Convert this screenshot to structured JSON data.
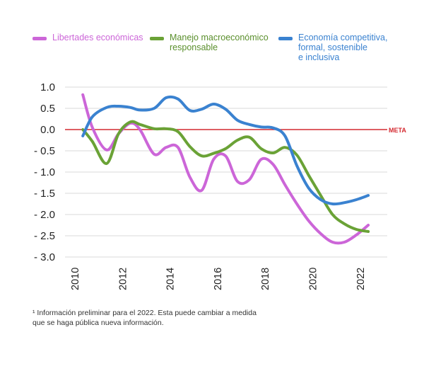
{
  "chart_data": {
    "type": "line",
    "x": [
      2010.3,
      2010.7,
      2011.3,
      2011.8,
      2012.3,
      2012.7,
      2013.3,
      2013.8,
      2014.3,
      2014.8,
      2015.3,
      2015.8,
      2016.3,
      2016.8,
      2017.3,
      2017.8,
      2018.3,
      2018.8,
      2019.3,
      2019.8,
      2020.3,
      2020.8,
      2021.3,
      2021.8,
      2022.3
    ],
    "series": [
      {
        "name": "Libertades económicas",
        "color": "#cc66d8",
        "values": [
          0.82,
          0.05,
          -0.48,
          -0.1,
          0.15,
          0.0,
          -0.58,
          -0.42,
          -0.42,
          -1.12,
          -1.43,
          -0.7,
          -0.62,
          -1.22,
          -1.18,
          -0.7,
          -0.82,
          -1.3,
          -1.75,
          -2.15,
          -2.45,
          -2.65,
          -2.65,
          -2.48,
          -2.25
        ]
      },
      {
        "name": "Manejo macroeconómico\nresponsable",
        "color": "#6aa236",
        "values": [
          0.0,
          -0.28,
          -0.8,
          -0.1,
          0.18,
          0.12,
          0.02,
          0.02,
          -0.05,
          -0.4,
          -0.62,
          -0.56,
          -0.45,
          -0.25,
          -0.18,
          -0.45,
          -0.55,
          -0.42,
          -0.6,
          -1.08,
          -1.55,
          -2.0,
          -2.22,
          -2.35,
          -2.4
        ]
      },
      {
        "name": "Economía competitiva,\nformal, sostenible\ne inclusiva",
        "color": "#3a82d0",
        "values": [
          -0.15,
          0.3,
          0.52,
          0.55,
          0.52,
          0.46,
          0.5,
          0.75,
          0.72,
          0.45,
          0.48,
          0.6,
          0.48,
          0.22,
          0.12,
          0.06,
          0.04,
          -0.15,
          -0.85,
          -1.38,
          -1.65,
          -1.75,
          -1.72,
          -1.65,
          -1.55
        ]
      }
    ],
    "y_ticks": [
      "1.0",
      "0.5",
      "0.0",
      "- 0.5",
      "- 1.0",
      "- 1.5",
      "- 2.0",
      "- 2.5",
      "- 3.0"
    ],
    "x_ticks": [
      "2010",
      "2012",
      "2014",
      "2016",
      "2018",
      "2020",
      "2022"
    ],
    "ylim": [
      -3.0,
      1.0
    ],
    "xlim": [
      2009.55,
      2023.1
    ],
    "grid": true,
    "legend_position": "top",
    "reference_line": {
      "value": 0.0,
      "label": "META",
      "color": "#d42a30"
    }
  },
  "footnote": "¹ Información preliminar para el 2022. Esta puede cambiar a medida\nque se haga pública nueva información."
}
